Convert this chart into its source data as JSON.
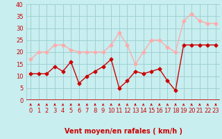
{
  "x": [
    0,
    1,
    2,
    3,
    4,
    5,
    6,
    7,
    8,
    9,
    10,
    11,
    12,
    13,
    14,
    15,
    16,
    17,
    18,
    19,
    20,
    21,
    22,
    23
  ],
  "wind_mean": [
    11,
    11,
    11,
    14,
    12,
    16,
    7,
    10,
    12,
    14,
    17,
    5,
    8,
    12,
    11,
    12,
    13,
    8,
    4,
    23,
    23,
    23,
    23,
    23
  ],
  "wind_gust": [
    17,
    20,
    20,
    23,
    23,
    21,
    20,
    20,
    20,
    20,
    23,
    28,
    23,
    15,
    20,
    25,
    25,
    22,
    20,
    33,
    36,
    33,
    32,
    32
  ],
  "mean_color": "#cc0000",
  "gust_color": "#ffaaaa",
  "bg_color": "#c8eef0",
  "grid_color": "#99cccc",
  "xlabel": "Vent moyen/en rafales ( km/h )",
  "ylim": [
    0,
    40
  ],
  "xlim": [
    -0.5,
    23.5
  ],
  "yticks": [
    0,
    5,
    10,
    15,
    20,
    25,
    30,
    35,
    40
  ],
  "xticks": [
    0,
    1,
    2,
    3,
    4,
    5,
    6,
    7,
    8,
    9,
    10,
    11,
    12,
    13,
    14,
    15,
    16,
    17,
    18,
    19,
    20,
    21,
    22,
    23
  ],
  "marker": "D",
  "markersize": 2.5,
  "linewidth": 1.0,
  "tick_labelsize": 6,
  "xlabel_fontsize": 7,
  "ytick_labelsize": 6
}
